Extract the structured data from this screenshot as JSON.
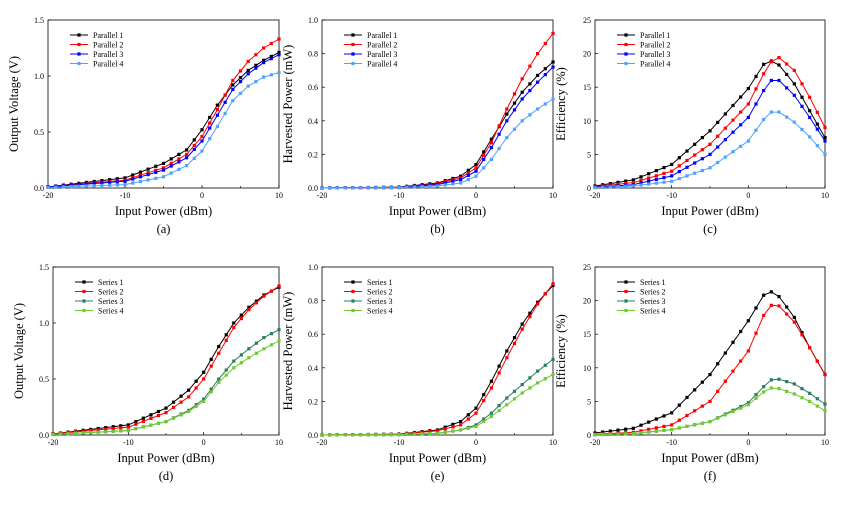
{
  "chart_data": [
    {
      "id": "a",
      "type": "line",
      "panel_label": "(a)",
      "xlabel": "Input Power (dBm)",
      "ylabel": "Output Voltage (V)",
      "xlim": [
        -20,
        10
      ],
      "ylim": [
        0,
        1.5
      ],
      "xticks": [
        "-20",
        "-10",
        "0",
        "10"
      ],
      "xtick_values": [
        -20,
        -10,
        0,
        10
      ],
      "yticks": [
        "0.0",
        "0.5",
        "1.0",
        "1.5"
      ],
      "ytick_values": [
        0,
        0.5,
        1.0,
        1.5
      ],
      "legend_position": "top-left",
      "series": [
        {
          "name": "Parallel 1",
          "color": "#000000",
          "x": [
            -20,
            -10,
            -5,
            -2,
            0,
            2,
            4,
            6,
            8,
            10
          ],
          "y": [
            0.01,
            0.09,
            0.22,
            0.34,
            0.52,
            0.74,
            0.92,
            1.05,
            1.14,
            1.21
          ]
        },
        {
          "name": "Parallel 2",
          "color": "#ff0000",
          "x": [
            -20,
            -10,
            -5,
            -2,
            0,
            2,
            4,
            6,
            8,
            10
          ],
          "y": [
            0.01,
            0.07,
            0.18,
            0.3,
            0.46,
            0.7,
            0.96,
            1.13,
            1.25,
            1.33
          ]
        },
        {
          "name": "Parallel 3",
          "color": "#0000ff",
          "x": [
            -20,
            -10,
            -5,
            -2,
            0,
            2,
            4,
            6,
            8,
            10
          ],
          "y": [
            0.01,
            0.06,
            0.16,
            0.27,
            0.42,
            0.65,
            0.88,
            1.02,
            1.12,
            1.19
          ]
        },
        {
          "name": "Parallel 4",
          "color": "#4fa3ff",
          "x": [
            -20,
            -10,
            -5,
            -2,
            0,
            2,
            4,
            6,
            8,
            10
          ],
          "y": [
            0.005,
            0.03,
            0.1,
            0.2,
            0.33,
            0.55,
            0.78,
            0.91,
            0.99,
            1.03
          ]
        }
      ]
    },
    {
      "id": "b",
      "type": "line",
      "panel_label": "(b)",
      "xlabel": "Input Power (dBm)",
      "ylabel": "Harvested Power (mW)",
      "xlim": [
        -20,
        10
      ],
      "ylim": [
        0,
        1.0
      ],
      "xticks": [
        "-20",
        "-10",
        "0",
        "10"
      ],
      "xtick_values": [
        -20,
        -10,
        0,
        10
      ],
      "yticks": [
        "0.0",
        "0.2",
        "0.4",
        "0.6",
        "0.8",
        "1.0"
      ],
      "ytick_values": [
        0,
        0.2,
        0.4,
        0.6,
        0.8,
        1.0
      ],
      "legend_position": "top-left",
      "series": [
        {
          "name": "Parallel 1",
          "color": "#000000",
          "x": [
            -20,
            -10,
            -5,
            -2,
            0,
            2,
            4,
            6,
            8,
            10
          ],
          "y": [
            0,
            0.005,
            0.03,
            0.07,
            0.14,
            0.29,
            0.44,
            0.57,
            0.67,
            0.75
          ]
        },
        {
          "name": "Parallel 2",
          "color": "#ff0000",
          "x": [
            -20,
            -10,
            -5,
            -2,
            0,
            2,
            4,
            6,
            8,
            10
          ],
          "y": [
            0,
            0.004,
            0.025,
            0.06,
            0.12,
            0.27,
            0.47,
            0.65,
            0.8,
            0.92
          ]
        },
        {
          "name": "Parallel 3",
          "color": "#0000ff",
          "x": [
            -20,
            -10,
            -5,
            -2,
            0,
            2,
            4,
            6,
            8,
            10
          ],
          "y": [
            0,
            0.003,
            0.02,
            0.05,
            0.1,
            0.24,
            0.4,
            0.53,
            0.63,
            0.72
          ]
        },
        {
          "name": "Parallel 4",
          "color": "#4fa3ff",
          "x": [
            -20,
            -10,
            -5,
            -2,
            0,
            2,
            4,
            6,
            8,
            10
          ],
          "y": [
            0,
            0.002,
            0.012,
            0.03,
            0.07,
            0.17,
            0.3,
            0.4,
            0.47,
            0.53
          ]
        }
      ]
    },
    {
      "id": "c",
      "type": "line",
      "panel_label": "(c)",
      "xlabel": "Input Power (dBm)",
      "ylabel": "Efficiency (%)",
      "xlim": [
        -20,
        10
      ],
      "ylim": [
        0,
        25
      ],
      "xticks": [
        "-20",
        "-10",
        "0",
        "10"
      ],
      "xtick_values": [
        -20,
        -10,
        0,
        10
      ],
      "yticks": [
        "0",
        "5",
        "10",
        "15",
        "20",
        "25"
      ],
      "ytick_values": [
        0,
        5,
        10,
        15,
        20,
        25
      ],
      "legend_position": "top-left",
      "series": [
        {
          "name": "Parallel 1",
          "color": "#000000",
          "x": [
            -20,
            -15,
            -10,
            -5,
            0,
            2,
            3,
            4,
            6,
            8,
            10
          ],
          "y": [
            0.3,
            1.2,
            3.5,
            8.5,
            14.8,
            18.4,
            18.9,
            18.3,
            15.5,
            11.5,
            7.5
          ]
        },
        {
          "name": "Parallel 2",
          "color": "#ff0000",
          "x": [
            -20,
            -15,
            -10,
            -5,
            0,
            2,
            3,
            4,
            6,
            8,
            10
          ],
          "y": [
            0.2,
            0.8,
            2.5,
            6.5,
            12.5,
            17.0,
            18.8,
            19.4,
            17.5,
            13.5,
            9.0
          ]
        },
        {
          "name": "Parallel 3",
          "color": "#0000ff",
          "x": [
            -20,
            -15,
            -10,
            -5,
            0,
            2,
            3,
            4,
            6,
            8,
            10
          ],
          "y": [
            0.1,
            0.5,
            1.8,
            5.0,
            10.5,
            14.5,
            16.0,
            16.0,
            13.8,
            10.5,
            7.0
          ]
        },
        {
          "name": "Parallel 4",
          "color": "#4fa3ff",
          "x": [
            -20,
            -15,
            -10,
            -5,
            0,
            2,
            3,
            4,
            6,
            8,
            10
          ],
          "y": [
            0.05,
            0.3,
            1.0,
            3.0,
            7.0,
            10.2,
            11.3,
            11.3,
            9.8,
            7.6,
            5.0
          ]
        }
      ]
    },
    {
      "id": "d",
      "type": "line",
      "panel_label": "(d)",
      "xlabel": "Input Power (dBm)",
      "ylabel": "Output Voltage (V)",
      "xlim": [
        -20,
        10
      ],
      "ylim": [
        0,
        1.5
      ],
      "xticks": [
        "-20",
        "-10",
        "0",
        "10"
      ],
      "xtick_values": [
        -20,
        -10,
        0,
        10
      ],
      "yticks": [
        "0.0",
        "0.5",
        "1.0",
        "1.5"
      ],
      "ytick_values": [
        0,
        0.5,
        1.0,
        1.5
      ],
      "legend_position": "top-left",
      "series": [
        {
          "name": "Series 1",
          "color": "#000000",
          "x": [
            -20,
            -10,
            -5,
            -2,
            0,
            2,
            4,
            6,
            8,
            10
          ],
          "y": [
            0.01,
            0.09,
            0.24,
            0.4,
            0.56,
            0.79,
            1.0,
            1.14,
            1.25,
            1.32
          ]
        },
        {
          "name": "Series 2",
          "color": "#ff0000",
          "x": [
            -20,
            -10,
            -5,
            -2,
            0,
            2,
            4,
            6,
            8,
            10
          ],
          "y": [
            0.01,
            0.07,
            0.2,
            0.34,
            0.5,
            0.73,
            0.96,
            1.12,
            1.24,
            1.33
          ]
        },
        {
          "name": "Series 3",
          "color": "#2e7d5b",
          "x": [
            -20,
            -10,
            -5,
            -2,
            0,
            2,
            4,
            6,
            8,
            10
          ],
          "y": [
            0.005,
            0.04,
            0.12,
            0.22,
            0.32,
            0.5,
            0.66,
            0.77,
            0.87,
            0.94
          ]
        },
        {
          "name": "Series 4",
          "color": "#6ecb2f",
          "x": [
            -20,
            -10,
            -5,
            -2,
            0,
            2,
            4,
            6,
            8,
            10
          ],
          "y": [
            0.005,
            0.04,
            0.12,
            0.21,
            0.3,
            0.47,
            0.6,
            0.69,
            0.77,
            0.84
          ]
        }
      ]
    },
    {
      "id": "e",
      "type": "line",
      "panel_label": "(e)",
      "xlabel": "Input Power (dBm)",
      "ylabel": "Harvested Power (mW)",
      "xlim": [
        -20,
        10
      ],
      "ylim": [
        0,
        1.0
      ],
      "xticks": [
        "-20",
        "-10",
        "0",
        "10"
      ],
      "xtick_values": [
        -20,
        -10,
        0,
        10
      ],
      "yticks": [
        "0.0",
        "0.2",
        "0.4",
        "0.6",
        "0.8",
        "1.0"
      ],
      "ytick_values": [
        0,
        0.2,
        0.4,
        0.6,
        0.8,
        1.0
      ],
      "legend_position": "top-left",
      "series": [
        {
          "name": "Series 1",
          "color": "#000000",
          "x": [
            -20,
            -10,
            -5,
            -2,
            0,
            2,
            4,
            6,
            8,
            10
          ],
          "y": [
            0,
            0.005,
            0.03,
            0.08,
            0.16,
            0.32,
            0.5,
            0.66,
            0.79,
            0.89
          ]
        },
        {
          "name": "Series 2",
          "color": "#ff0000",
          "x": [
            -20,
            -10,
            -5,
            -2,
            0,
            2,
            4,
            6,
            8,
            10
          ],
          "y": [
            0,
            0.004,
            0.025,
            0.06,
            0.13,
            0.28,
            0.46,
            0.63,
            0.78,
            0.9
          ]
        },
        {
          "name": "Series 3",
          "color": "#2e7d5b",
          "x": [
            -20,
            -10,
            -5,
            -2,
            0,
            2,
            4,
            6,
            8,
            10
          ],
          "y": [
            0,
            0.002,
            0.01,
            0.03,
            0.06,
            0.13,
            0.22,
            0.3,
            0.38,
            0.45
          ]
        },
        {
          "name": "Series 4",
          "color": "#6ecb2f",
          "x": [
            -20,
            -10,
            -5,
            -2,
            0,
            2,
            4,
            6,
            8,
            10
          ],
          "y": [
            0,
            0.002,
            0.01,
            0.03,
            0.05,
            0.11,
            0.18,
            0.25,
            0.31,
            0.36
          ]
        }
      ]
    },
    {
      "id": "f",
      "type": "line",
      "panel_label": "(f)",
      "xlabel": "Input Power (dBm)",
      "ylabel": "Efficiency (%)",
      "xlim": [
        -20,
        10
      ],
      "ylim": [
        0,
        25
      ],
      "xticks": [
        "-20",
        "-10",
        "0",
        "10"
      ],
      "xtick_values": [
        -20,
        -10,
        0,
        10
      ],
      "yticks": [
        "0",
        "5",
        "10",
        "15",
        "20",
        "25"
      ],
      "ytick_values": [
        0,
        5,
        10,
        15,
        20,
        25
      ],
      "legend_position": "top-left",
      "series": [
        {
          "name": "Series 1",
          "color": "#000000",
          "x": [
            -20,
            -15,
            -10,
            -5,
            0,
            2,
            3,
            4,
            6,
            8,
            10
          ],
          "y": [
            0.3,
            1.0,
            3.3,
            9.0,
            17.0,
            20.8,
            21.3,
            20.6,
            17.5,
            13.0,
            9.0
          ]
        },
        {
          "name": "Series 2",
          "color": "#ff0000",
          "x": [
            -20,
            -15,
            -10,
            -5,
            0,
            2,
            3,
            4,
            6,
            8,
            10
          ],
          "y": [
            0.1,
            0.4,
            1.5,
            5.0,
            12.5,
            17.8,
            19.3,
            19.2,
            16.8,
            13.0,
            9.0
          ]
        },
        {
          "name": "Series 3",
          "color": "#2e7d5b",
          "x": [
            -20,
            -15,
            -10,
            -5,
            0,
            2,
            3,
            4,
            6,
            8,
            10
          ],
          "y": [
            0.05,
            0.2,
            0.8,
            2.0,
            4.8,
            7.2,
            8.2,
            8.3,
            7.6,
            6.2,
            4.6
          ]
        },
        {
          "name": "Series 4",
          "color": "#6ecb2f",
          "x": [
            -20,
            -15,
            -10,
            -5,
            0,
            2,
            3,
            4,
            6,
            8,
            10
          ],
          "y": [
            0.05,
            0.2,
            0.8,
            2.0,
            4.5,
            6.4,
            7.0,
            6.9,
            6.1,
            5.0,
            3.6
          ]
        }
      ]
    }
  ]
}
